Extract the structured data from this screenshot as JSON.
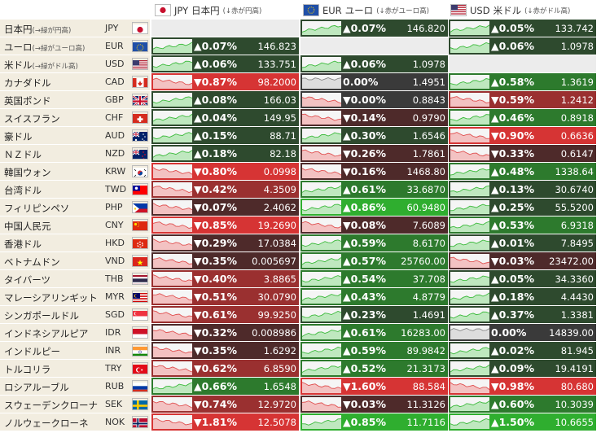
{
  "columns": [
    {
      "code": "JPY",
      "title": "日本円",
      "note": "(↓赤が円高)",
      "flag": "jp"
    },
    {
      "code": "EUR",
      "title": "ユーロ",
      "note": "(↓赤がユーロ高)",
      "flag": "eu"
    },
    {
      "code": "USD",
      "title": "米ドル",
      "note": "(↓赤がドル高)",
      "flag": "us"
    }
  ],
  "rows": [
    {
      "name": "日本円",
      "note": "(→緑が円高)",
      "code": "JPY",
      "flag": "jp",
      "cells": [
        null,
        {
          "pct": "▲0.07%",
          "val": "146.820",
          "dir": "up"
        },
        {
          "pct": "▲0.05%",
          "val": "133.742",
          "dir": "up"
        }
      ]
    },
    {
      "name": "ユーロ",
      "note": "(→緑がユーロ高)",
      "code": "EUR",
      "flag": "eu",
      "cells": [
        {
          "pct": "▲0.07%",
          "val": "146.823",
          "dir": "up"
        },
        null,
        {
          "pct": "▲0.06%",
          "val": "1.0978",
          "dir": "up"
        }
      ]
    },
    {
      "name": "米ドル",
      "note": "(→緑がドル高)",
      "code": "USD",
      "flag": "us",
      "cells": [
        {
          "pct": "▲0.06%",
          "val": "133.751",
          "dir": "up"
        },
        {
          "pct": "▲0.06%",
          "val": "1.0978",
          "dir": "up"
        },
        null
      ]
    },
    {
      "name": "カナダドル",
      "note": "",
      "code": "CAD",
      "flag": "ca",
      "cells": [
        {
          "pct": "▼0.87%",
          "val": "98.2000",
          "dir": "down"
        },
        {
          "pct": "0.00%",
          "val": "1.4951",
          "dir": "flat"
        },
        {
          "pct": "▲0.58%",
          "val": "1.3619",
          "dir": "up"
        }
      ]
    },
    {
      "name": "英国ポンド",
      "note": "",
      "code": "GBP",
      "flag": "gb",
      "cells": [
        {
          "pct": "▲0.08%",
          "val": "166.03",
          "dir": "up"
        },
        {
          "pct": "▼0.00%",
          "val": "0.8843",
          "dir": "down"
        },
        {
          "pct": "▼0.59%",
          "val": "1.2412",
          "dir": "down"
        }
      ]
    },
    {
      "name": "スイスフラン",
      "note": "",
      "code": "CHF",
      "flag": "ch",
      "cells": [
        {
          "pct": "▲0.04%",
          "val": "149.95",
          "dir": "up"
        },
        {
          "pct": "▼0.14%",
          "val": "0.9790",
          "dir": "down"
        },
        {
          "pct": "▲0.46%",
          "val": "0.8918",
          "dir": "up"
        }
      ]
    },
    {
      "name": "豪ドル",
      "note": "",
      "code": "AUD",
      "flag": "au",
      "cells": [
        {
          "pct": "▲0.15%",
          "val": "88.71",
          "dir": "up"
        },
        {
          "pct": "▲0.30%",
          "val": "1.6546",
          "dir": "up"
        },
        {
          "pct": "▼0.90%",
          "val": "0.6636",
          "dir": "down"
        }
      ]
    },
    {
      "name": "ＮＺドル",
      "note": "",
      "code": "NZD",
      "flag": "nz",
      "cells": [
        {
          "pct": "▲0.18%",
          "val": "82.18",
          "dir": "up"
        },
        {
          "pct": "▼0.26%",
          "val": "1.7861",
          "dir": "down"
        },
        {
          "pct": "▼0.33%",
          "val": "0.6147",
          "dir": "down"
        }
      ]
    },
    {
      "name": "韓国ウォン",
      "note": "",
      "code": "KRW",
      "flag": "kr",
      "cells": [
        {
          "pct": "▼0.80%",
          "val": "0.0998",
          "dir": "down"
        },
        {
          "pct": "▼0.16%",
          "val": "1468.80",
          "dir": "down"
        },
        {
          "pct": "▲0.48%",
          "val": "1338.64",
          "dir": "up"
        }
      ]
    },
    {
      "name": "台湾ドル",
      "note": "",
      "code": "TWD",
      "flag": "tw",
      "cells": [
        {
          "pct": "▼0.42%",
          "val": "4.3509",
          "dir": "down"
        },
        {
          "pct": "▲0.61%",
          "val": "33.6870",
          "dir": "up"
        },
        {
          "pct": "▲0.13%",
          "val": "30.6740",
          "dir": "up"
        }
      ]
    },
    {
      "name": "フィリピンペソ",
      "note": "",
      "code": "PHP",
      "flag": "ph",
      "cells": [
        {
          "pct": "▼0.07%",
          "val": "2.4062",
          "dir": "down"
        },
        {
          "pct": "▲0.86%",
          "val": "60.9480",
          "dir": "up"
        },
        {
          "pct": "▲0.25%",
          "val": "55.5200",
          "dir": "up"
        }
      ]
    },
    {
      "name": "中国人民元",
      "note": "",
      "code": "CNY",
      "flag": "cn",
      "cells": [
        {
          "pct": "▼0.85%",
          "val": "19.2690",
          "dir": "down"
        },
        {
          "pct": "▼0.08%",
          "val": "7.6089",
          "dir": "down"
        },
        {
          "pct": "▲0.53%",
          "val": "6.9318",
          "dir": "up"
        }
      ]
    },
    {
      "name": "香港ドル",
      "note": "",
      "code": "HKD",
      "flag": "hk",
      "cells": [
        {
          "pct": "▼0.29%",
          "val": "17.0384",
          "dir": "down"
        },
        {
          "pct": "▲0.59%",
          "val": "8.6170",
          "dir": "up"
        },
        {
          "pct": "▲0.01%",
          "val": "7.8495",
          "dir": "up"
        }
      ]
    },
    {
      "name": "ベトナムドン",
      "note": "",
      "code": "VND",
      "flag": "vn",
      "cells": [
        {
          "pct": "▼0.35%",
          "val": "0.005697",
          "dir": "down"
        },
        {
          "pct": "▲0.57%",
          "val": "25760.00",
          "dir": "up"
        },
        {
          "pct": "▼0.03%",
          "val": "23472.00",
          "dir": "down"
        }
      ]
    },
    {
      "name": "タイバーツ",
      "note": "",
      "code": "THB",
      "flag": "th",
      "cells": [
        {
          "pct": "▼0.40%",
          "val": "3.8865",
          "dir": "down"
        },
        {
          "pct": "▲0.54%",
          "val": "37.708",
          "dir": "up"
        },
        {
          "pct": "▲0.05%",
          "val": "34.3360",
          "dir": "up"
        }
      ]
    },
    {
      "name": "マレーシアリンギット",
      "note": "",
      "code": "MYR",
      "flag": "my",
      "cells": [
        {
          "pct": "▼0.51%",
          "val": "30.0790",
          "dir": "down"
        },
        {
          "pct": "▲0.43%",
          "val": "4.8779",
          "dir": "up"
        },
        {
          "pct": "▲0.18%",
          "val": "4.4430",
          "dir": "up"
        }
      ]
    },
    {
      "name": "シンガポールドル",
      "note": "",
      "code": "SGD",
      "flag": "sg",
      "cells": [
        {
          "pct": "▼0.61%",
          "val": "99.9250",
          "dir": "down"
        },
        {
          "pct": "▲0.23%",
          "val": "1.4691",
          "dir": "up"
        },
        {
          "pct": "▲0.37%",
          "val": "1.3381",
          "dir": "up"
        }
      ]
    },
    {
      "name": "インドネシアルピア",
      "note": "",
      "code": "IDR",
      "flag": "id",
      "cells": [
        {
          "pct": "▼0.32%",
          "val": "0.008986",
          "dir": "down"
        },
        {
          "pct": "▲0.61%",
          "val": "16283.00",
          "dir": "up"
        },
        {
          "pct": "0.00%",
          "val": "14839.00",
          "dir": "flat"
        }
      ]
    },
    {
      "name": "インドルピー",
      "note": "",
      "code": "INR",
      "flag": "in",
      "cells": [
        {
          "pct": "▼0.35%",
          "val": "1.6292",
          "dir": "down"
        },
        {
          "pct": "▲0.59%",
          "val": "89.9842",
          "dir": "up"
        },
        {
          "pct": "▲0.02%",
          "val": "81.945",
          "dir": "up"
        }
      ]
    },
    {
      "name": "トルコリラ",
      "note": "",
      "code": "TRY",
      "flag": "tr",
      "cells": [
        {
          "pct": "▼0.62%",
          "val": "6.8590",
          "dir": "down"
        },
        {
          "pct": "▲0.52%",
          "val": "21.3173",
          "dir": "up"
        },
        {
          "pct": "▲0.09%",
          "val": "19.4191",
          "dir": "up"
        }
      ]
    },
    {
      "name": "ロシアルーブル",
      "note": "",
      "code": "RUB",
      "flag": "ru",
      "cells": [
        {
          "pct": "▲0.66%",
          "val": "1.6548",
          "dir": "up"
        },
        {
          "pct": "▼1.60%",
          "val": "88.584",
          "dir": "down"
        },
        {
          "pct": "▼0.98%",
          "val": "80.680",
          "dir": "down"
        }
      ]
    },
    {
      "name": "スウェーデンクローナ",
      "note": "",
      "code": "SEK",
      "flag": "se",
      "cells": [
        {
          "pct": "▼0.74%",
          "val": "12.9720",
          "dir": "down"
        },
        {
          "pct": "▼0.03%",
          "val": "11.3126",
          "dir": "down"
        },
        {
          "pct": "▲0.60%",
          "val": "10.3039",
          "dir": "up"
        }
      ]
    },
    {
      "name": "ノルウェークローネ",
      "note": "",
      "code": "NOK",
      "flag": "no",
      "cells": [
        {
          "pct": "▼1.81%",
          "val": "12.5078",
          "dir": "down"
        },
        {
          "pct": "▲0.85%",
          "val": "11.7116",
          "dir": "up"
        },
        {
          "pct": "▲1.50%",
          "val": "10.6655",
          "dir": "up"
        }
      ]
    }
  ],
  "colors": {
    "label_bg": "#f2ede0",
    "green_strong": "#2fae2f",
    "green_mid": "#2d7a2d",
    "green_dark": "#2e4a2e",
    "red_strong": "#d63434",
    "red_mid": "#9a3030",
    "red_dark": "#4e2a2a",
    "neutral": "#3a3a3a",
    "empty": "#ececec"
  }
}
